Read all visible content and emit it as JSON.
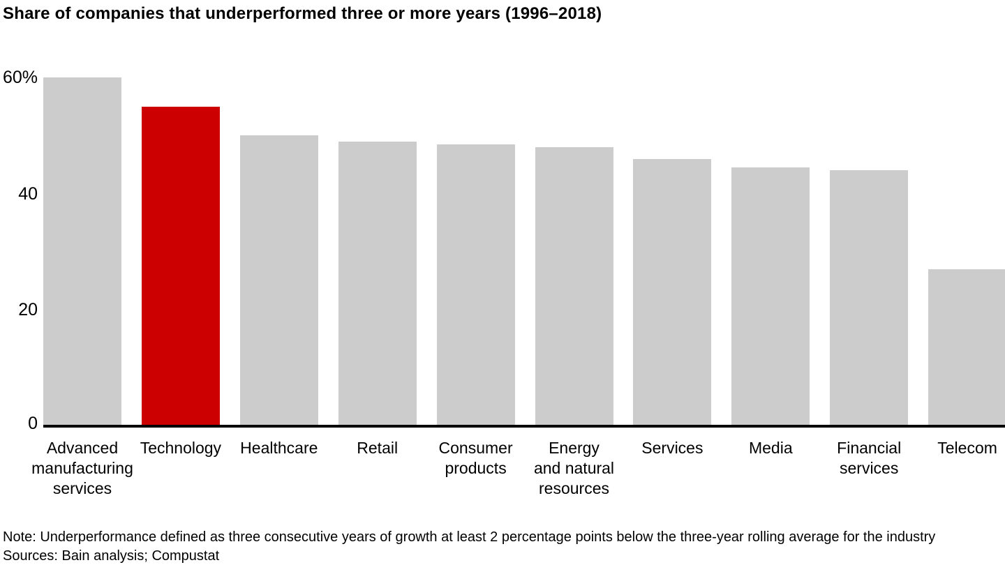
{
  "title": "Share of companies that underperformed three or more years (1996–2018)",
  "footnote": {
    "note": "Note: Underperformance defined as three consecutive years of growth at least 2 percentage points below the three-year rolling average for the industry",
    "sources": "Sources: Bain analysis; Compustat"
  },
  "colors": {
    "bar_default": "#cccccc",
    "bar_highlight": "#cc0000",
    "axis": "#000000",
    "text": "#000000",
    "background": "#ffffff"
  },
  "chart_data": {
    "type": "bar",
    "title": "Share of companies that underperformed three or more years (1996–2018)",
    "categories": [
      "Advanced manufacturing services",
      "Technology",
      "Healthcare",
      "Retail",
      "Consumer products",
      "Energy and natural resources",
      "Services",
      "Media",
      "Financial services",
      "Telecom"
    ],
    "category_label_lines": [
      [
        "Advanced",
        "manufacturing",
        "services"
      ],
      [
        "Technology"
      ],
      [
        "Healthcare"
      ],
      [
        "Retail"
      ],
      [
        "Consumer",
        "products"
      ],
      [
        "Energy",
        "and natural",
        "resources"
      ],
      [
        "Services"
      ],
      [
        "Media"
      ],
      [
        "Financial",
        "services"
      ],
      [
        "Telecom"
      ]
    ],
    "values": [
      60,
      55,
      50,
      49,
      48.5,
      48,
      46,
      44.5,
      44,
      27
    ],
    "unit": "%",
    "highlighted_category": "Technology",
    "highlight_index": 1,
    "yticks": [
      {
        "value": 60,
        "label": "60%"
      },
      {
        "value": 40,
        "label": "40"
      },
      {
        "value": 20,
        "label": "20"
      },
      {
        "value": 0,
        "label": "0"
      }
    ],
    "ylim": [
      0,
      60
    ],
    "xlabel": "",
    "ylabel": "",
    "grid": false,
    "legend_position": "none"
  }
}
